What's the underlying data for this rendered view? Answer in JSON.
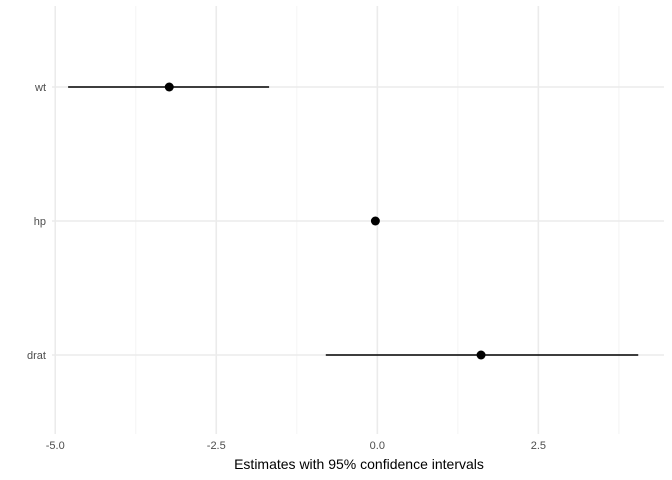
{
  "chart_data": {
    "type": "scatter",
    "title": "",
    "xlabel": "Estimates with 95% confidence intervals",
    "ylabel": "",
    "xlim": [
      -5.05,
      4.45
    ],
    "xticks": [
      -5.0,
      -2.5,
      0.0,
      2.5
    ],
    "xtick_labels": [
      "-5.0",
      "-2.5",
      "0.0",
      "2.5"
    ],
    "categories": [
      "wt",
      "hp",
      "drat"
    ],
    "estimates": [
      -3.23,
      -0.03,
      1.61
    ],
    "ci_low": [
      -4.8,
      -0.05,
      -0.8
    ],
    "ci_high": [
      -1.68,
      -0.01,
      4.05
    ],
    "grid": true,
    "colors": {
      "point": "#000000",
      "grid_major": "#ebebeb",
      "grid_minor": "#f5f5f5"
    }
  }
}
